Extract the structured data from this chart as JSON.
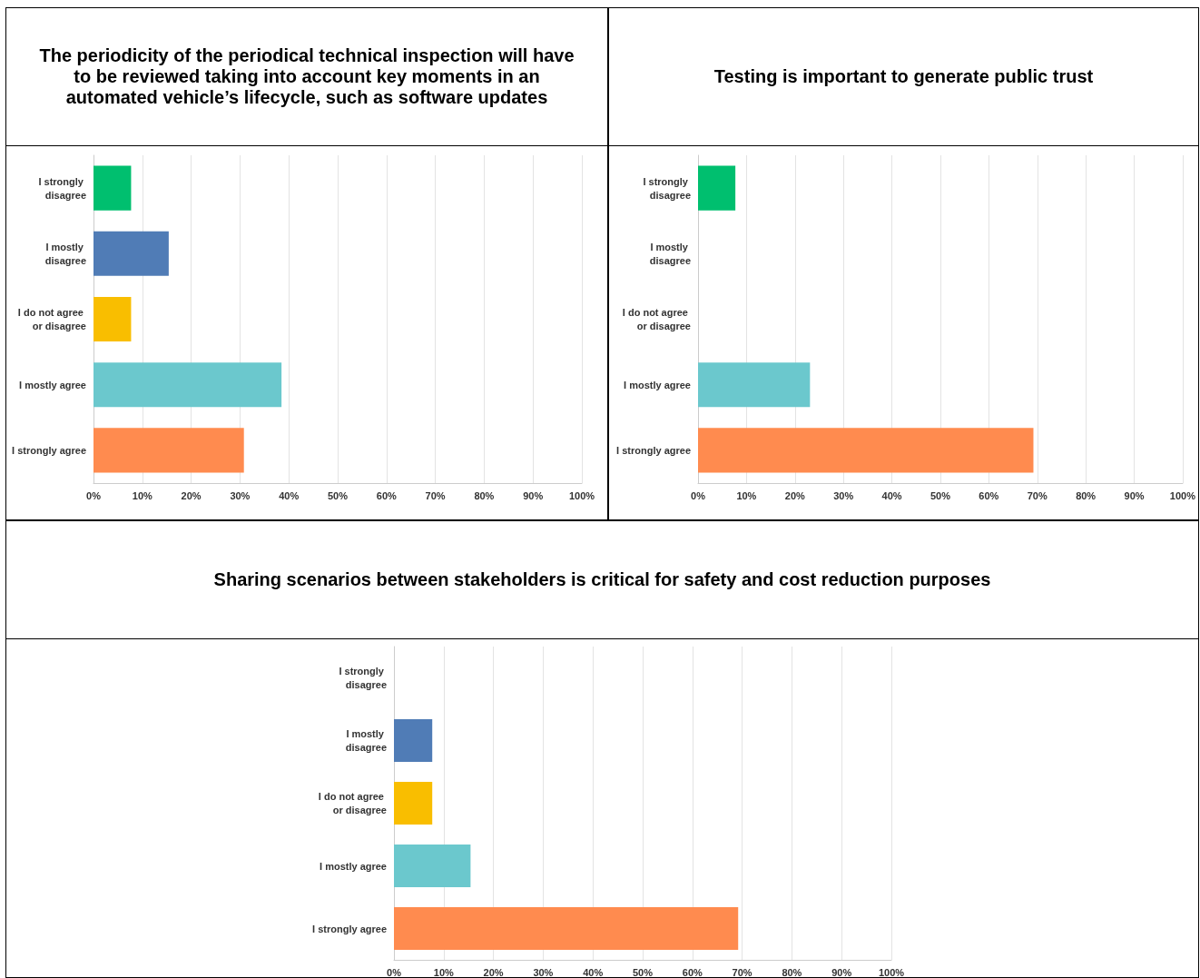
{
  "chart_data": [
    {
      "type": "bar",
      "orientation": "horizontal",
      "title": "The periodicity of the periodical technical inspection will have to be reviewed taking into account key moments in an automated vehicle’s lifecycle, such as software updates",
      "categories": [
        "I strongly disagree",
        "I mostly disagree",
        "I do not agree or disagree",
        "I mostly agree",
        "I strongly agree"
      ],
      "values": [
        7.7,
        15.4,
        7.7,
        38.5,
        30.8
      ],
      "colors": [
        "#00bf6f",
        "#507cb6",
        "#f9be00",
        "#6bc8cd",
        "#ff8b4f"
      ],
      "xlim": [
        0,
        100
      ],
      "xticks": [
        {
          "value": 0,
          "label": "0%"
        },
        {
          "value": 10,
          "label": "10%"
        },
        {
          "value": 20,
          "label": "20%"
        },
        {
          "value": 30,
          "label": "30%"
        },
        {
          "value": 40,
          "label": "40%"
        },
        {
          "value": 50,
          "label": "50%"
        },
        {
          "value": 60,
          "label": "60%"
        },
        {
          "value": 70,
          "label": "70%"
        },
        {
          "value": 80,
          "label": "80%"
        },
        {
          "value": 90,
          "label": "90%"
        },
        {
          "value": 100,
          "label": "100%"
        }
      ],
      "grid": "x"
    },
    {
      "type": "bar",
      "orientation": "horizontal",
      "title": "Testing is important to generate public trust",
      "categories": [
        "I strongly disagree",
        "I mostly disagree",
        "I do not agree or disagree",
        "I mostly agree",
        "I strongly agree"
      ],
      "values": [
        7.7,
        0,
        0,
        23.1,
        69.2
      ],
      "colors": [
        "#00bf6f",
        "#507cb6",
        "#f9be00",
        "#6bc8cd",
        "#ff8b4f"
      ],
      "xlim": [
        0,
        100
      ],
      "xticks": [
        {
          "value": 0,
          "label": "0%"
        },
        {
          "value": 10,
          "label": "10%"
        },
        {
          "value": 20,
          "label": "20%"
        },
        {
          "value": 30,
          "label": "30%"
        },
        {
          "value": 40,
          "label": "40%"
        },
        {
          "value": 50,
          "label": "50%"
        },
        {
          "value": 60,
          "label": "60%"
        },
        {
          "value": 70,
          "label": "70%"
        },
        {
          "value": 80,
          "label": "80%"
        },
        {
          "value": 90,
          "label": "90%"
        },
        {
          "value": 100,
          "label": "100%"
        }
      ],
      "grid": "x"
    },
    {
      "type": "bar",
      "orientation": "horizontal",
      "title": "Sharing scenarios between stakeholders is critical for safety and cost reduction purposes",
      "categories": [
        "I strongly disagree",
        "I mostly disagree",
        "I do not agree or disagree",
        "I mostly agree",
        "I strongly agree"
      ],
      "values": [
        0,
        7.7,
        7.7,
        15.4,
        69.2
      ],
      "colors": [
        "#00bf6f",
        "#507cb6",
        "#f9be00",
        "#6bc8cd",
        "#ff8b4f"
      ],
      "xlim": [
        0,
        100
      ],
      "xticks": [
        {
          "value": 0,
          "label": "0%"
        },
        {
          "value": 10,
          "label": "10%"
        },
        {
          "value": 20,
          "label": "20%"
        },
        {
          "value": 30,
          "label": "30%"
        },
        {
          "value": 40,
          "label": "40%"
        },
        {
          "value": 50,
          "label": "50%"
        },
        {
          "value": 60,
          "label": "60%"
        },
        {
          "value": 70,
          "label": "70%"
        },
        {
          "value": 80,
          "label": "80%"
        },
        {
          "value": 90,
          "label": "90%"
        },
        {
          "value": 100,
          "label": "100%"
        }
      ],
      "grid": "x"
    }
  ]
}
